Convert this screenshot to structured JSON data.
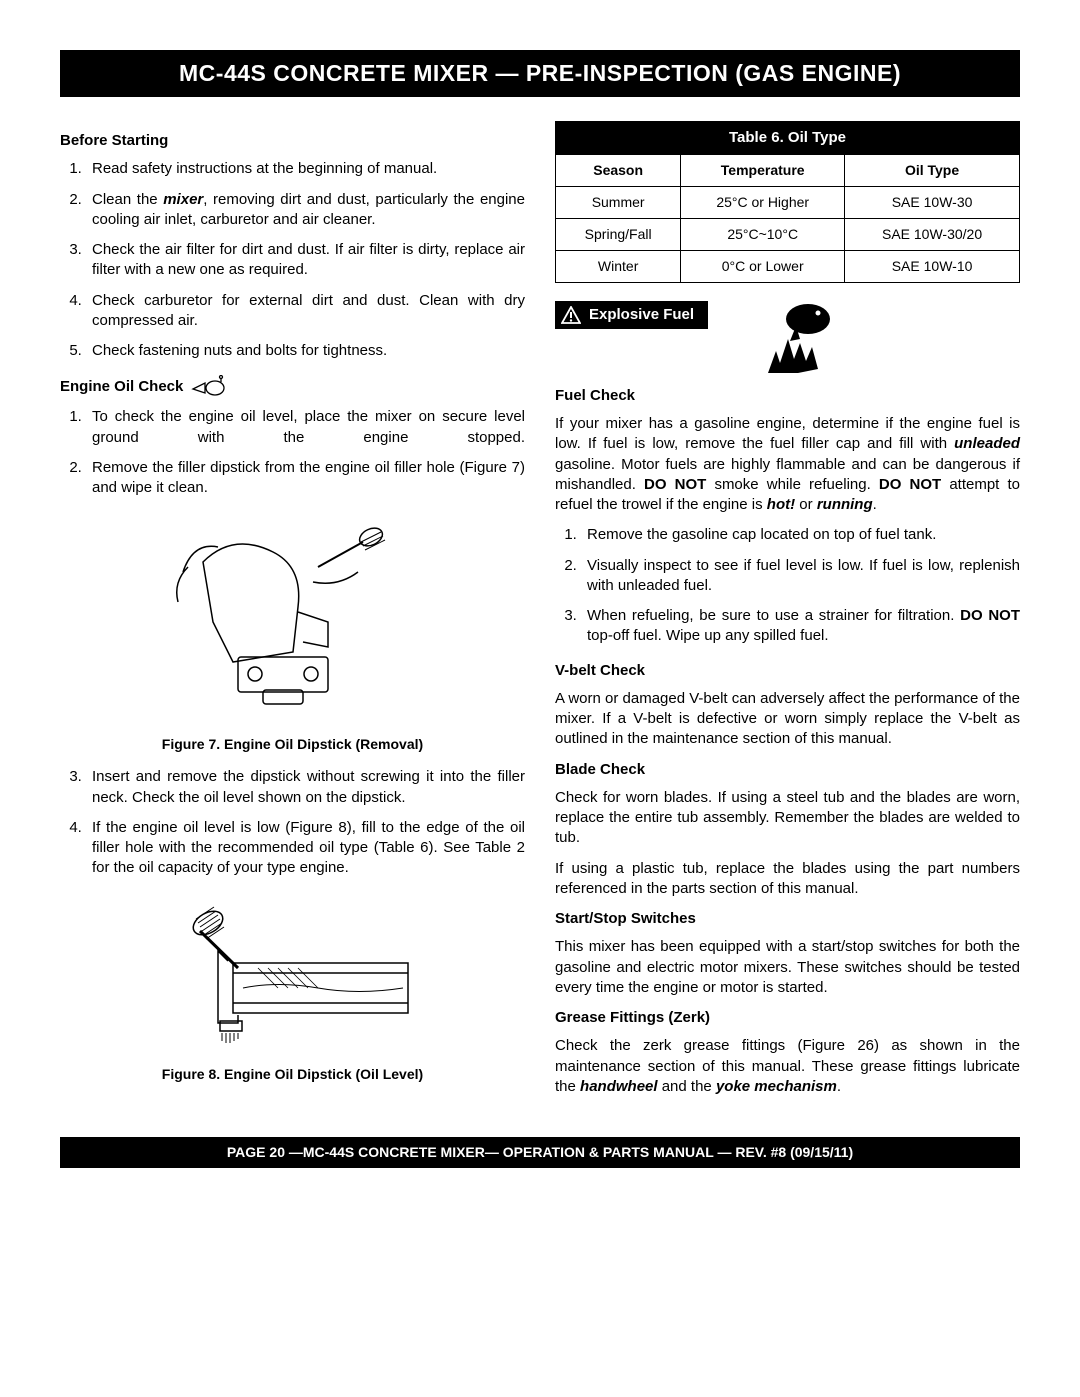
{
  "header": "MC-44S CONCRETE MIXER — PRE-INSPECTION (GAS ENGINE)",
  "footer": "PAGE 20 —MC-44S CONCRETE MIXER— OPERATION & PARTS MANUAL — REV. #8 (09/15/11)",
  "left": {
    "before_starting": {
      "title": "Before Starting",
      "items": [
        "Read safety instructions at the beginning of manual.",
        "Clean the <span class='bi'>mixer</span>, removing dirt and dust, particularly the engine cooling air inlet, carburetor and air cleaner.",
        "Check the air filter for dirt and dust. If air filter is dirty, replace air filter with a new one as required.",
        "Check carburetor for external dirt and dust. Clean with dry compressed air.",
        "Check fastening nuts and bolts for tightness."
      ]
    },
    "engine_oil": {
      "title": "Engine Oil Check",
      "items_a": [
        "To check the engine oil level, place the mixer on secure level ground with the engine stopped.",
        "Remove the filler dipstick from the engine oil filler hole (Figure 7) and wipe it clean."
      ],
      "fig7_caption": "Figure 7. Engine Oil Dipstick (Removal)",
      "items_b": [
        "Insert and remove the dipstick without screwing it into the filler neck. Check the oil level shown on the dipstick.",
        "If the engine oil level is low (Figure 8), fill to the edge of the oil filler hole with the recommended oil type (Table 6). See Table 2 for the oil capacity of your type engine."
      ],
      "fig8_caption": "Figure 8. Engine Oil Dipstick (Oil Level)"
    }
  },
  "right": {
    "oil_table": {
      "title": "Table 6. Oil Type",
      "headers": [
        "Season",
        "Temperature",
        "Oil Type"
      ],
      "rows": [
        [
          "Summer",
          "25°C or Higher",
          "SAE 10W-30"
        ],
        [
          "Spring/Fall",
          "25°C~10°C",
          "SAE 10W-30/20"
        ],
        [
          "Winter",
          "0°C or Lower",
          "SAE 10W-10"
        ]
      ]
    },
    "explosive_label": "Explosive Fuel",
    "fuel_check": {
      "title": "Fuel Check",
      "intro": "If your mixer has a gasoline engine, determine if the engine fuel is low. If fuel is low, remove the fuel filler cap and fill with <span class='bi'>unleaded</span> gasoline. Motor fuels are highly flammable and can be dangerous if mishandled. <span class='b'>DO NOT</span> smoke while refueling. <span class='b'>DO NOT</span> attempt to refuel the trowel if the engine is <span class='bi'>hot!</span> or <span class='bi'>running</span>.",
      "items": [
        "Remove the gasoline cap located on top of fuel tank.",
        "Visually inspect to see if fuel level is low. If fuel is low, replenish with unleaded fuel.",
        "When refueling, be sure to use a strainer for filtration. <span class='b'>DO NOT</span> top-off fuel. Wipe up any spilled fuel."
      ]
    },
    "vbelt": {
      "title": "V-belt Check",
      "text": "A worn or damaged V-belt can adversely affect the performance of the mixer. If a V-belt is defective or worn simply replace the V-belt as outlined in the maintenance section of this manual."
    },
    "blade": {
      "title": "Blade Check",
      "text1": "Check for worn blades.  If using a steel tub and the blades are worn, replace the entire tub assembly. Remember the blades are welded to tub.",
      "text2": "If using a plastic tub, replace the blades using the part numbers referenced in the parts section of this manual."
    },
    "startstop": {
      "title": "Start/Stop  Switches",
      "text": "This mixer has been equipped with a start/stop switches for both the gasoline and electric motor mixers. These switches should be tested every time the engine or motor is started."
    },
    "grease": {
      "title": "Grease Fittings (Zerk)",
      "text": "Check the zerk grease fittings (Figure 26) as shown in the maintenance section of this manual. These grease fittings lubricate the <span class='bi'>handwheel</span> and the <span class='bi'>yoke mechanism</span>."
    }
  }
}
